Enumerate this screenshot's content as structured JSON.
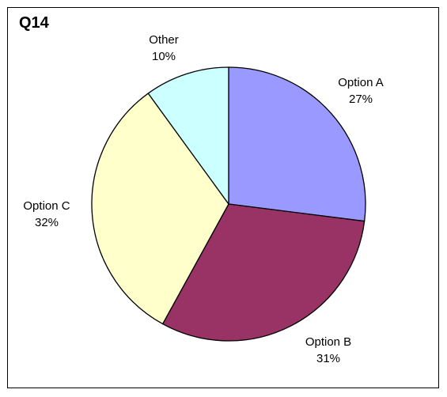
{
  "chart_data": {
    "type": "pie",
    "title": "Q14",
    "categories": [
      "Option A",
      "Option B",
      "Option C",
      "Other"
    ],
    "values": [
      27,
      31,
      32,
      10
    ],
    "value_labels": [
      "27%",
      "31%",
      "32%",
      "10%"
    ],
    "colors": [
      "#9999ff",
      "#993366",
      "#ffffcc",
      "#ccffff"
    ],
    "start": "12 o'clock",
    "direction": "clockwise",
    "legend": "none"
  }
}
